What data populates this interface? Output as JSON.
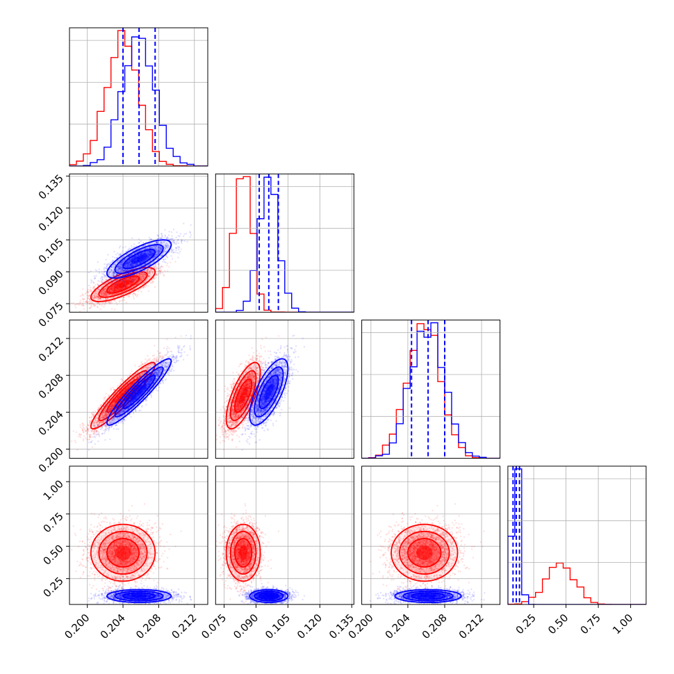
{
  "chart_data": {
    "type": "corner",
    "grid": true,
    "colors": {
      "red": "#ff0000",
      "blue": "#0000ff"
    },
    "parameters": [
      {
        "range": [
          0.198,
          0.2135
        ],
        "ticks": [
          0.2,
          0.204,
          0.208,
          0.212
        ],
        "tick_labels": [
          "0.200",
          "0.204",
          "0.208",
          "0.212"
        ]
      },
      {
        "range": [
          0.071,
          0.136
        ],
        "ticks": [
          0.075,
          0.09,
          0.105,
          0.12,
          0.135
        ],
        "tick_labels": [
          "0.075",
          "0.090",
          "0.105",
          "0.120",
          "0.135"
        ]
      },
      {
        "range": [
          0.199,
          0.214
        ],
        "ticks": [
          0.2,
          0.204,
          0.208,
          0.212
        ],
        "tick_labels": [
          "0.200",
          "0.204",
          "0.208",
          "0.212"
        ]
      },
      {
        "range": [
          0.05,
          1.12
        ],
        "ticks": [
          0.25,
          0.5,
          0.75,
          1.0
        ],
        "tick_labels": [
          "0.25",
          "0.50",
          "0.75",
          "1.00"
        ]
      }
    ],
    "series": [
      {
        "color": "red",
        "means": [
          0.204,
          0.084,
          0.2058,
          0.45
        ],
        "sigmas": [
          0.0018,
          0.004,
          0.0018,
          0.11
        ],
        "corr": [
          [
            1,
            0.75,
            0.93,
            0
          ],
          [
            0.75,
            1,
            0.7,
            0
          ],
          [
            0.93,
            0.7,
            1,
            0
          ],
          [
            0,
            0,
            0,
            1
          ]
        ],
        "quantile_lines": false
      },
      {
        "color": "blue",
        "means": [
          0.2058,
          0.096,
          0.2062,
          0.115
        ],
        "sigmas": [
          0.0018,
          0.0045,
          0.0018,
          0.025
        ],
        "corr": [
          [
            1,
            0.75,
            0.93,
            0
          ],
          [
            0.75,
            1,
            0.7,
            0
          ],
          [
            0.93,
            0.7,
            1,
            0
          ],
          [
            0,
            0,
            0,
            1
          ]
        ],
        "quantile_lines": true,
        "quantiles": [
          [
            0.204,
            0.2058,
            0.2076
          ],
          [
            0.0915,
            0.096,
            0.1005
          ],
          [
            0.2044,
            0.2062,
            0.208
          ],
          [
            0.09,
            0.115,
            0.14
          ]
        ]
      }
    ]
  }
}
